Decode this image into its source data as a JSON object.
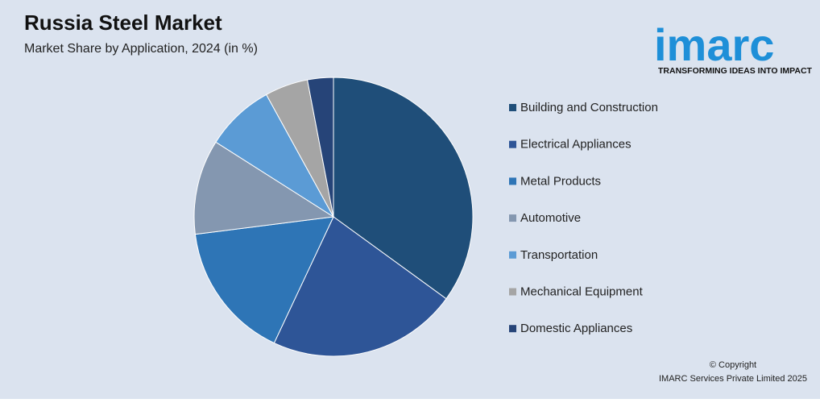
{
  "chart_data": {
    "type": "pie",
    "title": "Russia Steel Market",
    "subtitle": "Market Share by Application, 2024 (in %)",
    "categories": [
      "Building and Construction",
      "Electrical Appliances",
      "Metal Products",
      "Automotive",
      "Transportation",
      "Mechanical Equipment",
      "Domestic Appliances"
    ],
    "values": [
      35,
      22,
      16,
      11,
      8,
      5,
      3
    ],
    "colors": [
      "#1f4e79",
      "#2e5597",
      "#2e75b6",
      "#8497b0",
      "#5b9bd5",
      "#a5a5a5",
      "#264478"
    ],
    "legend": "right"
  },
  "logo": {
    "name": "imarc",
    "tagline": "TRANSFORMING IDEAS INTO IMPACT"
  },
  "footer": {
    "copyright": "© Copyright",
    "owner": "IMARC Services Private Limited 2025"
  }
}
